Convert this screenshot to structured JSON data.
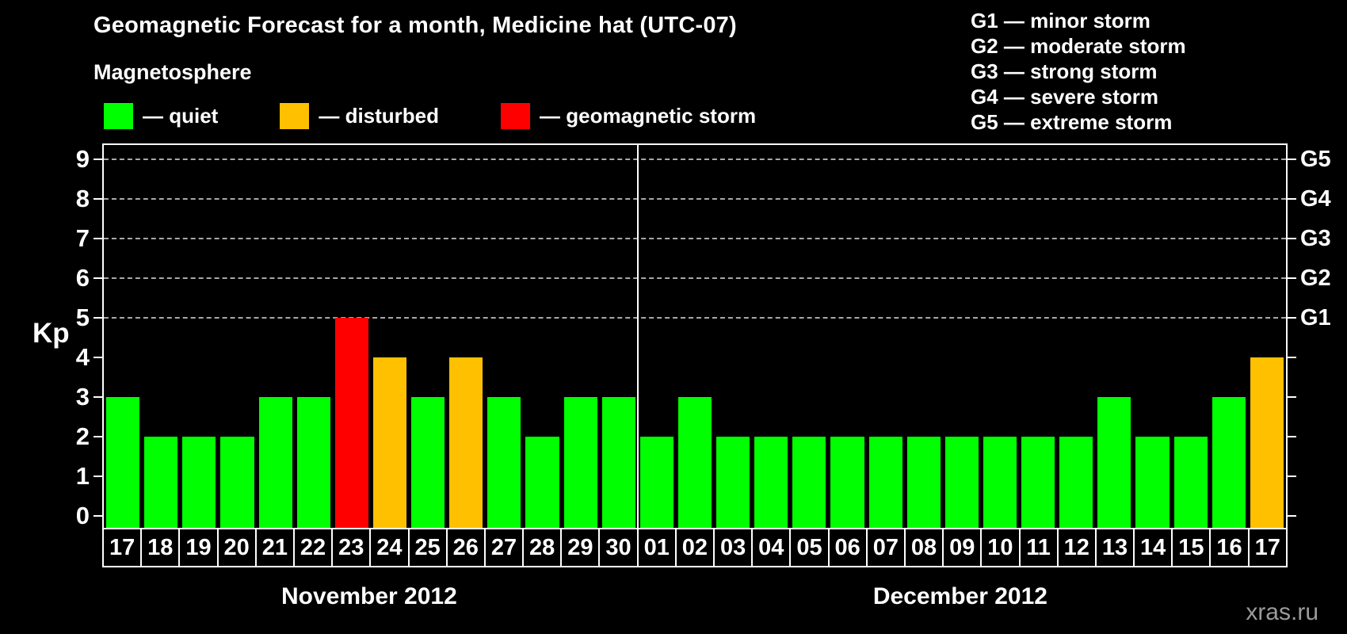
{
  "page": {
    "title": "Geomagnetic Forecast for a month, Medicine hat (UTC-07)",
    "subtitle": "Magnetosphere",
    "watermark": "xras.ru"
  },
  "legend": {
    "items": [
      {
        "name": "quiet",
        "label": "— quiet",
        "color": "#00ff00"
      },
      {
        "name": "disturbed",
        "label": "— disturbed",
        "color": "#ffc000"
      },
      {
        "name": "storm",
        "label": "— geomagnetic storm",
        "color": "#ff0000"
      }
    ]
  },
  "g_scale_legend": [
    {
      "level": "G1",
      "label": "G1 — minor storm"
    },
    {
      "level": "G2",
      "label": "G2 — moderate storm"
    },
    {
      "level": "G3",
      "label": "G3 — strong storm"
    },
    {
      "level": "G4",
      "label": "G4 — severe storm"
    },
    {
      "level": "G5",
      "label": "G5 — extreme storm"
    }
  ],
  "chart_data": {
    "type": "bar",
    "title": "Geomagnetic Forecast for a month, Medicine hat (UTC-07)",
    "ylabel": "Kp",
    "ylim": [
      0,
      9
    ],
    "yticks": [
      0,
      1,
      2,
      3,
      4,
      5,
      6,
      7,
      8,
      9
    ],
    "gridlines_at_kp": [
      5,
      6,
      7,
      8,
      9
    ],
    "grid": "dashed-horizontal-at-storm-levels",
    "legend_position": "top-left-and-top-right",
    "right_axis_labels": [
      {
        "label": "G1",
        "kp": 5
      },
      {
        "label": "G2",
        "kp": 6
      },
      {
        "label": "G3",
        "kp": 7
      },
      {
        "label": "G4",
        "kp": 8
      },
      {
        "label": "G5",
        "kp": 9
      }
    ],
    "months": [
      {
        "label": "November 2012",
        "days": 14
      },
      {
        "label": "December 2012",
        "days": 17
      }
    ],
    "categories": [
      "17",
      "18",
      "19",
      "20",
      "21",
      "22",
      "23",
      "24",
      "25",
      "26",
      "27",
      "28",
      "29",
      "30",
      "01",
      "02",
      "03",
      "04",
      "05",
      "06",
      "07",
      "08",
      "09",
      "10",
      "11",
      "12",
      "13",
      "14",
      "15",
      "16",
      "17"
    ],
    "series": [
      {
        "name": "Kp forecast",
        "values": [
          3,
          2,
          2,
          2,
          3,
          3,
          5,
          4,
          3,
          4,
          3,
          2,
          3,
          3,
          2,
          3,
          2,
          2,
          2,
          2,
          2,
          2,
          2,
          2,
          2,
          2,
          3,
          2,
          2,
          3,
          4
        ],
        "statuses": [
          "quiet",
          "quiet",
          "quiet",
          "quiet",
          "quiet",
          "quiet",
          "storm",
          "disturbed",
          "quiet",
          "disturbed",
          "quiet",
          "quiet",
          "quiet",
          "quiet",
          "quiet",
          "quiet",
          "quiet",
          "quiet",
          "quiet",
          "quiet",
          "quiet",
          "quiet",
          "quiet",
          "quiet",
          "quiet",
          "quiet",
          "quiet",
          "quiet",
          "quiet",
          "quiet",
          "disturbed"
        ]
      }
    ],
    "status_colors": {
      "quiet": "#00ff00",
      "disturbed": "#ffc000",
      "storm": "#ff0000"
    }
  }
}
